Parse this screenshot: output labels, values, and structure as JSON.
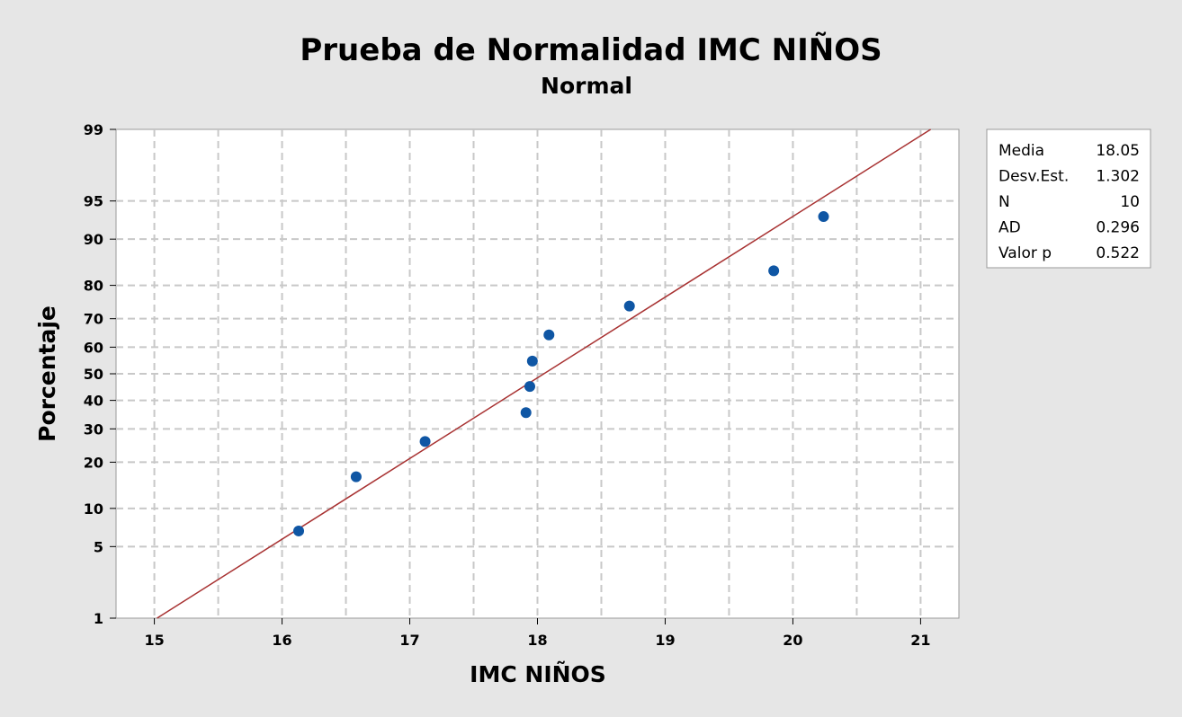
{
  "chart_data": {
    "type": "scatter",
    "title": "Prueba de Normalidad IMC NIÑOS",
    "subtitle": "Normal",
    "xlabel": "IMC NIÑOS",
    "ylabel": "Porcentaje",
    "xlim": [
      14.7,
      21.3
    ],
    "ylim_percent": [
      1,
      99
    ],
    "y_scale": "normal-probability",
    "x_ticks": [
      15,
      16,
      17,
      18,
      19,
      20,
      21
    ],
    "x_grid": [
      15,
      15.5,
      16,
      16.5,
      17,
      17.5,
      18,
      18.5,
      19,
      19.5,
      20,
      20.5,
      21
    ],
    "y_ticks": [
      1,
      5,
      10,
      20,
      30,
      40,
      50,
      60,
      70,
      80,
      90,
      95,
      99
    ],
    "grid": true,
    "points": [
      {
        "x": 16.13,
        "y": 6.73
      },
      {
        "x": 16.58,
        "y": 16.35
      },
      {
        "x": 17.12,
        "y": 25.96
      },
      {
        "x": 17.91,
        "y": 35.58
      },
      {
        "x": 17.94,
        "y": 45.19
      },
      {
        "x": 17.96,
        "y": 54.81
      },
      {
        "x": 18.09,
        "y": 64.42
      },
      {
        "x": 18.72,
        "y": 74.04
      },
      {
        "x": 19.85,
        "y": 83.65
      },
      {
        "x": 20.24,
        "y": 93.27
      }
    ],
    "fit_line": {
      "mean": 18.05,
      "stdev": 1.302
    },
    "colors": {
      "points": "#0f56a4",
      "fit_line": "#a83232",
      "grid": "#c8c8c8"
    },
    "legend": {
      "placement": "right",
      "entries": [
        {
          "label": "Media",
          "value": "18.05"
        },
        {
          "label": "Desv.Est.",
          "value": "1.302"
        },
        {
          "label": "N",
          "value": "10"
        },
        {
          "label": "AD",
          "value": "0.296"
        },
        {
          "label": "Valor p",
          "value": "0.522"
        }
      ]
    }
  }
}
